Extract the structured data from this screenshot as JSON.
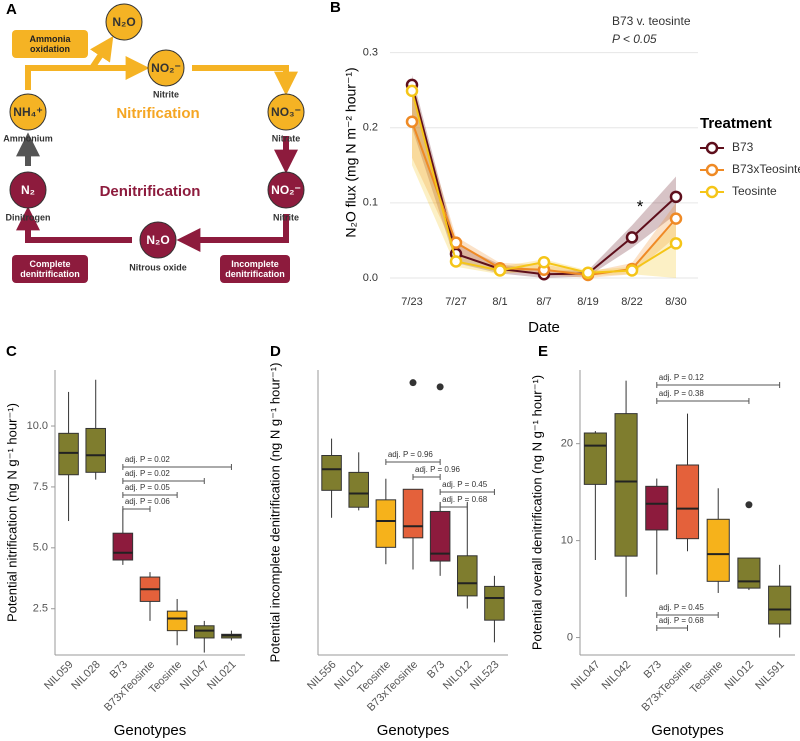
{
  "diagram": {
    "label": "A",
    "nitrification": "Nitrification",
    "denitrification": "Denitrification",
    "nodes": [
      {
        "formula": "N₂O"
      },
      {
        "formula": "NO₂⁻",
        "name": "Nitrite"
      },
      {
        "formula": "NH₄⁺",
        "name": "Ammonium"
      },
      {
        "formula": "NO₃⁻",
        "name": "Nitrate"
      },
      {
        "formula": "N₂",
        "name": "Dinitrogen"
      },
      {
        "formula": "NO₂⁻",
        "name": "Nitrite"
      },
      {
        "formula": "N₂O",
        "name": "Nitrous oxide"
      }
    ],
    "processes": [
      "Ammonia oxidation",
      "Complete denitrification",
      "Incomplete denitrification"
    ]
  },
  "chart_data": [
    {
      "type": "line",
      "label": "B",
      "categories": [
        "7/23",
        "7/27",
        "8/1",
        "8/7",
        "8/19",
        "8/22",
        "8/30"
      ],
      "x_label": "Date",
      "y_label": "N₂O flux (mg N m⁻² hour⁻¹)",
      "ylim": [
        -0.016,
        0.35
      ],
      "yticks": [
        {
          "value": 0,
          "label": "0.0"
        },
        0.1,
        0.2,
        0.3
      ],
      "grid": true,
      "legend_title": "Treatment",
      "legend": "right",
      "annotations": [
        "B73 v. teosinte",
        "P < 0.05",
        "*"
      ],
      "series": [
        {
          "name": "B73",
          "color": "#5e0f1c",
          "values": [
            0.257,
            0.032,
            0.012,
            0.005,
            0.006,
            0.054,
            0.108
          ],
          "lower": [
            0.2,
            0.02,
            0.006,
            0.0,
            0.002,
            0.04,
            0.085
          ],
          "upper": [
            0.27,
            0.045,
            0.018,
            0.01,
            0.01,
            0.07,
            0.135
          ]
        },
        {
          "name": "B73xTeosinte",
          "color": "#ef8a25",
          "values": [
            0.208,
            0.047,
            0.013,
            0.011,
            0.004,
            0.012,
            0.079
          ],
          "lower": [
            0.16,
            0.035,
            0.008,
            0.005,
            0.0,
            0.005,
            0.055
          ],
          "upper": [
            0.25,
            0.055,
            0.02,
            0.018,
            0.008,
            0.02,
            0.1
          ]
        },
        {
          "name": "Teosinte",
          "color": "#f5c518",
          "values": [
            0.249,
            0.022,
            0.01,
            0.021,
            0.007,
            0.01,
            0.046
          ],
          "lower": [
            0.15,
            0.015,
            0.005,
            0.012,
            0.003,
            0.005,
            0.0
          ],
          "upper": [
            0.265,
            0.03,
            0.015,
            0.025,
            0.01,
            0.015,
            0.075
          ]
        }
      ]
    },
    {
      "type": "box",
      "label": "C",
      "x_label": "Genotypes",
      "y_label": "Potential nitrification (ng N g⁻¹ hour⁻¹)",
      "ylim": [
        0.6,
        12.3
      ],
      "yticks": [
        2.5,
        {
          "value": 5,
          "label": "5.0"
        },
        7.5,
        {
          "value": 10,
          "label": "10.0"
        }
      ],
      "categories": [
        "NIL059",
        "NIL028",
        "B73",
        "B73xTeosinte",
        "Teosinte",
        "NIL047",
        "NIL021"
      ],
      "colors": [
        "#7f7d2e",
        "#7f7d2e",
        "#8d1b3d",
        "#e4613b",
        "#f6b21b",
        "#7f7d2e",
        "#7f7d2e"
      ],
      "boxes": [
        {
          "min": 6.1,
          "q1": 8.0,
          "median": 8.9,
          "q3": 9.7,
          "max": 11.4
        },
        {
          "min": 7.8,
          "q1": 8.1,
          "median": 8.8,
          "q3": 9.9,
          "max": 11.9
        },
        {
          "min": 4.3,
          "q1": 4.5,
          "median": 4.8,
          "q3": 5.6,
          "max": 6.6
        },
        {
          "min": 2.0,
          "q1": 2.8,
          "median": 3.3,
          "q3": 3.8,
          "max": 4.0
        },
        {
          "min": 1.0,
          "q1": 1.6,
          "median": 2.1,
          "q3": 2.4,
          "max": 2.9
        },
        {
          "min": 0.7,
          "q1": 1.3,
          "median": 1.6,
          "q3": 1.8,
          "max": 2.0
        },
        {
          "min": 1.2,
          "q1": 1.3,
          "median": 1.4,
          "q3": 1.45,
          "max": 1.6
        }
      ],
      "annotations": [
        {
          "text": "adj. P = 0.02",
          "from": "B73",
          "to": "NIL021"
        },
        {
          "text": "adj. P = 0.02",
          "from": "B73",
          "to": "NIL047"
        },
        {
          "text": "adj. P = 0.05",
          "from": "B73",
          "to": "Teosinte"
        },
        {
          "text": "adj. P = 0.06",
          "from": "B73",
          "to": "B73xTeosinte"
        }
      ]
    },
    {
      "type": "box",
      "label": "D",
      "x_label": "Genotypes",
      "y_label": "Potential incomplete denitrification (ng N g⁻¹ hour⁻¹)",
      "ylim": [
        0,
        27
      ],
      "categories": [
        "NIL556",
        "NIL021",
        "Teosinte",
        "B73xTeosinte",
        "B73",
        "NIL012",
        "NIL523"
      ],
      "colors": [
        "#7f7d2e",
        "#7f7d2e",
        "#f6b21b",
        "#e4613b",
        "#8d1b3d",
        "#7f7d2e",
        "#7f7d2e"
      ],
      "boxes": [
        {
          "min": 13.0,
          "q1": 15.6,
          "median": 17.6,
          "q3": 18.9,
          "max": 20.5
        },
        {
          "min": 13.7,
          "q1": 14.0,
          "median": 15.3,
          "q3": 17.3,
          "max": 19.2
        },
        {
          "min": 8.6,
          "q1": 10.2,
          "median": 12.7,
          "q3": 14.7,
          "max": 16.7
        },
        {
          "min": 8.1,
          "q1": 11.1,
          "median": 12.2,
          "q3": 15.7,
          "max": 15.7,
          "outliers": [
            25.8
          ]
        },
        {
          "min": 7.5,
          "q1": 8.9,
          "median": 9.6,
          "q3": 13.6,
          "max": 14.5,
          "outliers": [
            25.4
          ]
        },
        {
          "min": 4.4,
          "q1": 5.6,
          "median": 6.8,
          "q3": 9.4,
          "max": 14.5
        },
        {
          "min": 1.2,
          "q1": 3.3,
          "median": 5.4,
          "q3": 6.5,
          "max": 7.5
        }
      ],
      "annotations": [
        {
          "text": "adj. P = 0.96",
          "from": "Teosinte",
          "to": "B73"
        },
        {
          "text": "adj. P = 0.96",
          "from": "B73xTeosinte",
          "to": "B73"
        },
        {
          "text": "adj. P = 0.45",
          "from": "B73",
          "to": "NIL523"
        },
        {
          "text": "adj. P = 0.68",
          "from": "B73",
          "to": "NIL012"
        }
      ]
    },
    {
      "type": "box",
      "label": "E",
      "x_label": "Genotypes",
      "y_label": "Potential overall denitrification (ng N g⁻¹ hour⁻¹)",
      "ylim": [
        -1.8,
        27.6
      ],
      "yticks": [
        0,
        10,
        20
      ],
      "categories": [
        "NIL047",
        "NIL042",
        "B73",
        "B73xTeosinte",
        "Teosinte",
        "NIL012",
        "NIL591"
      ],
      "colors": [
        "#7f7d2e",
        "#7f7d2e",
        "#8d1b3d",
        "#e4613b",
        "#f6b21b",
        "#7f7d2e",
        "#7f7d2e"
      ],
      "boxes": [
        {
          "min": 8.0,
          "q1": 15.8,
          "median": 19.8,
          "q3": 21.1,
          "max": 21.3
        },
        {
          "min": 4.2,
          "q1": 8.4,
          "median": 16.1,
          "q3": 23.1,
          "max": 26.5
        },
        {
          "min": 6.5,
          "q1": 11.1,
          "median": 13.8,
          "q3": 15.6,
          "max": 16.4
        },
        {
          "min": 8.9,
          "q1": 10.2,
          "median": 13.3,
          "q3": 17.8,
          "max": 23.1
        },
        {
          "min": 4.6,
          "q1": 5.8,
          "median": 8.6,
          "q3": 12.2,
          "max": 15.4
        },
        {
          "min": 4.9,
          "q1": 5.1,
          "median": 5.8,
          "q3": 8.2,
          "max": 8.2,
          "outliers": [
            13.7
          ]
        },
        {
          "min": 0.0,
          "q1": 1.4,
          "median": 2.9,
          "q3": 5.3,
          "max": 7.5
        }
      ],
      "annotations": [
        {
          "text": "adj. P = 0.12",
          "from": "B73",
          "to": "NIL591"
        },
        {
          "text": "adj. P = 0.38",
          "from": "B73",
          "to": "NIL012"
        },
        {
          "text": "adj. P = 0.45",
          "from": "B73",
          "to": "Teosinte"
        },
        {
          "text": "adj. P = 0.68",
          "from": "B73",
          "to": "B73xTeosinte"
        }
      ]
    }
  ]
}
